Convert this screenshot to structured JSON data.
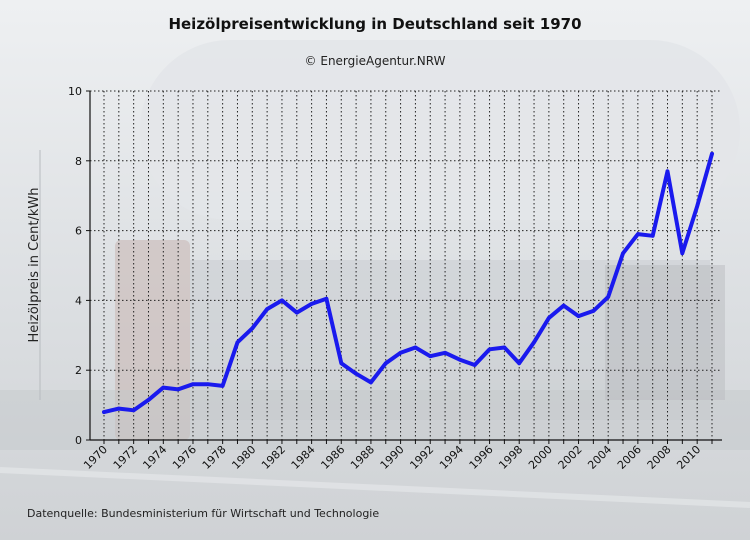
{
  "chart_data": {
    "type": "line",
    "title": "Heizölpreisentwicklung in Deutschland seit 1970",
    "subtitle": "© EnergieAgentur.NRW",
    "xlabel": "",
    "ylabel": "Heizölpreis in Cent/kWh",
    "source": "Datenquelle: Bundesministerium für Wirtschaft und Technologie",
    "xlim": [
      1970,
      2011
    ],
    "ylim": [
      0,
      10
    ],
    "y_ticks": [
      0,
      2,
      4,
      6,
      8,
      10
    ],
    "x_ticks": [
      1970,
      1972,
      1974,
      1976,
      1978,
      1980,
      1982,
      1984,
      1986,
      1988,
      1990,
      1992,
      1994,
      1996,
      1998,
      2000,
      2002,
      2004,
      2006,
      2008,
      2010
    ],
    "grid": true,
    "line_color": "#1a1aee",
    "x": [
      1970,
      1971,
      1972,
      1973,
      1974,
      1975,
      1976,
      1977,
      1978,
      1979,
      1980,
      1981,
      1982,
      1983,
      1984,
      1985,
      1986,
      1987,
      1988,
      1989,
      1990,
      1991,
      1992,
      1993,
      1994,
      1995,
      1996,
      1997,
      1998,
      1999,
      2000,
      2001,
      2002,
      2003,
      2004,
      2005,
      2006,
      2007,
      2008,
      2009,
      2010,
      2011
    ],
    "values": [
      0.8,
      0.9,
      0.85,
      1.15,
      1.5,
      1.45,
      1.6,
      1.6,
      1.55,
      2.8,
      3.2,
      3.75,
      4.0,
      3.65,
      3.9,
      4.05,
      2.2,
      1.9,
      1.65,
      2.2,
      2.5,
      2.65,
      2.4,
      2.5,
      2.3,
      2.15,
      2.6,
      2.65,
      2.2,
      2.8,
      3.5,
      3.85,
      3.55,
      3.7,
      4.1,
      5.35,
      5.9,
      5.85,
      7.7,
      5.35,
      6.7,
      8.2
    ]
  }
}
